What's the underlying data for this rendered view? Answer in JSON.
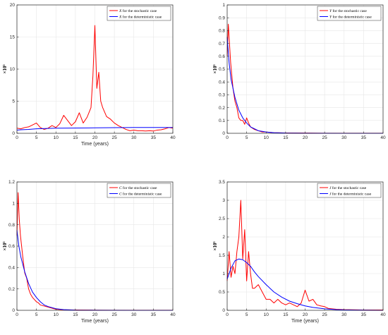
{
  "colors": {
    "stochastic": "#ff0000",
    "deterministic": "#0000ff",
    "axis": "#262626",
    "grid": "#e6e6e6"
  },
  "chart_data": [
    {
      "type": "line",
      "xlabel": "Time (years)",
      "ylabel": "×10⁵",
      "xlim": [
        0,
        40
      ],
      "ylim": [
        0,
        20
      ],
      "xticks": [
        "0",
        "5",
        "10",
        "15",
        "20",
        "25",
        "30",
        "35",
        "40"
      ],
      "yticks": [
        "0",
        "5",
        "10",
        "15",
        "20"
      ],
      "grid": true,
      "legend_position": "top-right",
      "legend": [
        {
          "symbol": "X",
          "text": "for the stochastic case"
        },
        {
          "symbol": "X",
          "text": "for the deterministic case"
        }
      ],
      "series": [
        {
          "name": "X for the stochastic case",
          "color": "#ff0000",
          "x": [
            0,
            1,
            2,
            3,
            4,
            5,
            6,
            7,
            8,
            9,
            10,
            11,
            12,
            13,
            14,
            15,
            16,
            17,
            18,
            19,
            19.5,
            20,
            20.5,
            21,
            21.5,
            22,
            23,
            24,
            25,
            26,
            27,
            28,
            29,
            30,
            31,
            32,
            33,
            34,
            35,
            36,
            37,
            38,
            39,
            40
          ],
          "y": [
            0.8,
            0.7,
            0.9,
            1.0,
            1.3,
            1.6,
            0.9,
            0.6,
            0.8,
            1.2,
            0.9,
            1.5,
            2.8,
            2.0,
            1.2,
            1.8,
            3.2,
            1.6,
            2.5,
            4.0,
            9.0,
            16.8,
            7.0,
            9.5,
            5.0,
            4.0,
            2.6,
            2.2,
            1.6,
            1.2,
            0.9,
            0.6,
            0.4,
            0.5,
            0.4,
            0.4,
            0.35,
            0.4,
            0.35,
            0.5,
            0.55,
            0.7,
            0.9,
            0.8
          ]
        },
        {
          "name": "X for the deterministic case",
          "color": "#0000ff",
          "x": [
            0,
            1,
            3,
            5,
            10,
            20,
            30,
            40
          ],
          "y": [
            0.5,
            0.55,
            0.6,
            0.7,
            0.8,
            0.85,
            0.9,
            0.9
          ]
        }
      ]
    },
    {
      "type": "line",
      "xlabel": "",
      "ylabel": "×10⁵",
      "xlim": [
        0,
        40
      ],
      "ylim": [
        0,
        1
      ],
      "xticks": [
        "0",
        "5",
        "10",
        "15",
        "20",
        "25",
        "30",
        "35",
        "40"
      ],
      "yticks": [
        "0",
        "0.1",
        "0.2",
        "0.3",
        "0.4",
        "0.5",
        "0.6",
        "0.7",
        "0.8",
        "0.9",
        "1"
      ],
      "grid": true,
      "legend_position": "top-right",
      "legend": [
        {
          "symbol": "Y",
          "text": "for the stochastic case"
        },
        {
          "symbol": "Y",
          "text": "for the deterministic case"
        }
      ],
      "series": [
        {
          "name": "Y for the stochastic case",
          "color": "#ff0000",
          "x": [
            0,
            0.3,
            0.6,
            0.9,
            1.2,
            1.5,
            2,
            2.5,
            3,
            3.5,
            4,
            4.5,
            5,
            5.5,
            6,
            7,
            8,
            9,
            10,
            12,
            15,
            20,
            25,
            30,
            40
          ],
          "y": [
            0.6,
            0.85,
            0.7,
            0.55,
            0.45,
            0.35,
            0.25,
            0.2,
            0.12,
            0.1,
            0.1,
            0.07,
            0.12,
            0.08,
            0.05,
            0.03,
            0.02,
            0.01,
            0.01,
            0.005,
            0.003,
            0.002,
            0.001,
            0.001,
            0.001
          ]
        },
        {
          "name": "Y for the deterministic case",
          "color": "#0000ff",
          "x": [
            0,
            0.5,
            1,
            2,
            3,
            4,
            5,
            6,
            7,
            8,
            10,
            12,
            15,
            20,
            30,
            40
          ],
          "y": [
            0.75,
            0.55,
            0.42,
            0.28,
            0.18,
            0.12,
            0.08,
            0.05,
            0.035,
            0.02,
            0.01,
            0.005,
            0.002,
            0.001,
            0,
            0
          ]
        }
      ]
    },
    {
      "type": "line",
      "xlabel": "Time (years)",
      "ylabel": "×10⁵",
      "xlim": [
        0,
        40
      ],
      "ylim": [
        0,
        1.2
      ],
      "xticks": [
        "0",
        "5",
        "10",
        "15",
        "20",
        "25",
        "30",
        "35",
        "40"
      ],
      "yticks": [
        "0",
        "0.2",
        "0.4",
        "0.6",
        "0.8",
        "1",
        "1.2"
      ],
      "grid": true,
      "legend_position": "top-right",
      "legend": [
        {
          "symbol": "C",
          "text": "for the stochastic case"
        },
        {
          "symbol": "C",
          "text": "for the deterministic case"
        }
      ],
      "series": [
        {
          "name": "C for the stochastic case",
          "color": "#ff0000",
          "x": [
            0,
            0.3,
            0.6,
            0.9,
            1.2,
            1.5,
            2,
            2.5,
            3,
            3.5,
            4,
            4.5,
            5,
            5.5,
            6,
            7,
            8,
            9,
            10,
            12,
            15,
            20,
            25,
            30,
            40
          ],
          "y": [
            0.7,
            1.1,
            0.85,
            0.7,
            0.6,
            0.5,
            0.35,
            0.3,
            0.2,
            0.15,
            0.12,
            0.1,
            0.08,
            0.07,
            0.05,
            0.04,
            0.03,
            0.02,
            0.01,
            0.005,
            0.003,
            0.002,
            0.001,
            0.001,
            0.001
          ]
        },
        {
          "name": "C for the deterministic case",
          "color": "#0000ff",
          "x": [
            0,
            0.5,
            1,
            2,
            3,
            4,
            5,
            6,
            7,
            8,
            10,
            12,
            15,
            20,
            30,
            40
          ],
          "y": [
            0.75,
            0.6,
            0.5,
            0.36,
            0.25,
            0.17,
            0.12,
            0.08,
            0.05,
            0.035,
            0.015,
            0.007,
            0.002,
            0.001,
            0,
            0
          ]
        }
      ]
    },
    {
      "type": "line",
      "xlabel": "Time (years)",
      "ylabel": "×10⁵",
      "xlim": [
        0,
        40
      ],
      "ylim": [
        0,
        3.5
      ],
      "xticks": [
        "0",
        "5",
        "10",
        "15",
        "20",
        "25",
        "30",
        "35",
        "40"
      ],
      "yticks": [
        "0",
        "0.5",
        "1",
        "1.5",
        "2",
        "2.5",
        "3",
        "3.5"
      ],
      "grid": true,
      "legend_position": "top-right",
      "legend": [
        {
          "symbol": "J",
          "text": "for the stochastic case"
        },
        {
          "symbol": "J",
          "text": "for the deterministic case"
        }
      ],
      "series": [
        {
          "name": "J for the stochastic case",
          "color": "#ff0000",
          "x": [
            0,
            0.5,
            1,
            1.5,
            2,
            2.5,
            3,
            3.5,
            4,
            4.5,
            5,
            5.5,
            6,
            6.5,
            7,
            8,
            9,
            10,
            11,
            12,
            13,
            14,
            15,
            16,
            17,
            18,
            19,
            20,
            21,
            22,
            23,
            24,
            25,
            26,
            28,
            30,
            35,
            40
          ],
          "y": [
            0.8,
            1.6,
            0.9,
            1.2,
            1.0,
            1.6,
            2.0,
            3.0,
            1.4,
            2.2,
            0.8,
            1.6,
            1.0,
            0.6,
            0.6,
            0.7,
            0.5,
            0.3,
            0.3,
            0.2,
            0.3,
            0.2,
            0.15,
            0.2,
            0.15,
            0.1,
            0.2,
            0.55,
            0.25,
            0.3,
            0.15,
            0.12,
            0.1,
            0.05,
            0.03,
            0.02,
            0.01,
            0.01
          ]
        },
        {
          "name": "J for the deterministic case",
          "color": "#0000ff",
          "x": [
            0,
            1,
            2,
            3,
            4,
            5,
            6,
            7,
            8,
            10,
            12,
            14,
            16,
            18,
            20,
            22,
            25,
            28,
            30,
            35,
            40
          ],
          "y": [
            0.85,
            1.15,
            1.35,
            1.4,
            1.38,
            1.3,
            1.2,
            1.05,
            0.92,
            0.7,
            0.5,
            0.36,
            0.25,
            0.18,
            0.12,
            0.08,
            0.04,
            0.02,
            0.012,
            0.004,
            0.001
          ]
        }
      ]
    }
  ]
}
